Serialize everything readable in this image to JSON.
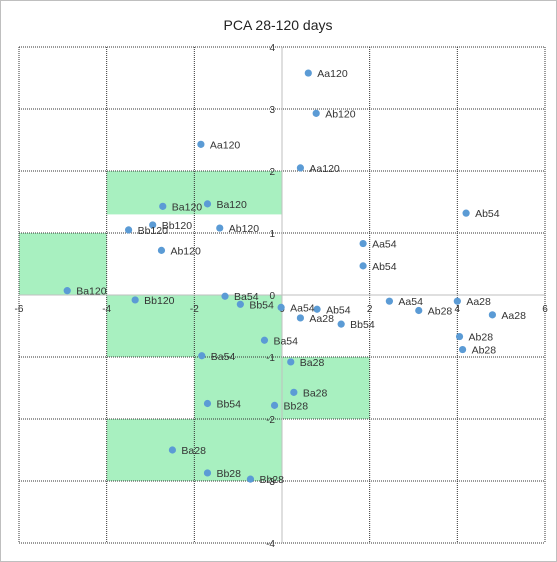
{
  "chart_data": {
    "type": "scatter",
    "title": "PCA 28-120 days",
    "xlabel": "",
    "ylabel": "",
    "xlim": [
      -6,
      6
    ],
    "ylim": [
      -4,
      4
    ],
    "x_ticks": [
      -6,
      -4,
      -2,
      0,
      2,
      4,
      6
    ],
    "y_ticks": [
      -4,
      -3,
      -2,
      -1,
      0,
      1,
      2,
      3,
      4
    ],
    "x_tick_labels": [
      "-6",
      "-4",
      "-2",
      "0",
      "2",
      "4",
      "6"
    ],
    "y_tick_labels": [
      "-4",
      "-3",
      "-2",
      "-1",
      "0",
      "1",
      "2",
      "3",
      "4"
    ],
    "grid": true,
    "legend": "none",
    "colors": {
      "marker": "#5b9bd5",
      "highlight": "#a8f0c0",
      "grid": "#333333",
      "axis": "#bfbfbf",
      "border": "#bfbfbf"
    },
    "highlight_regions": [
      {
        "x": [
          -4,
          0
        ],
        "y": [
          1.3,
          2
        ]
      },
      {
        "x": [
          -6,
          -4
        ],
        "y": [
          0,
          1
        ]
      },
      {
        "x": [
          -4,
          -2
        ],
        "y": [
          -1,
          0
        ]
      },
      {
        "x": [
          -2,
          0
        ],
        "y": [
          -2,
          0
        ]
      },
      {
        "x": [
          0,
          2
        ],
        "y": [
          -2,
          -1
        ]
      },
      {
        "x": [
          -4,
          0
        ],
        "y": [
          -3,
          -2
        ]
      }
    ],
    "points": [
      {
        "label": "Aa120",
        "x": 0.6,
        "y": 3.58
      },
      {
        "label": "Ab120",
        "x": 0.78,
        "y": 2.93
      },
      {
        "label": "Aa120",
        "x": -1.85,
        "y": 2.43
      },
      {
        "label": "Aa120",
        "x": 0.42,
        "y": 2.05
      },
      {
        "label": "Ba120",
        "x": -2.72,
        "y": 1.43
      },
      {
        "label": "Ba120",
        "x": -1.7,
        "y": 1.47
      },
      {
        "label": "Bb120",
        "x": -2.95,
        "y": 1.13
      },
      {
        "label": "Bb120",
        "x": -3.5,
        "y": 1.05
      },
      {
        "label": "Ab120",
        "x": -1.42,
        "y": 1.08
      },
      {
        "label": "Ab120",
        "x": -2.75,
        "y": 0.72
      },
      {
        "label": "Ba120",
        "x": -4.9,
        "y": 0.07
      },
      {
        "label": "Bb120",
        "x": -3.35,
        "y": -0.08
      },
      {
        "label": "Ab54",
        "x": 4.2,
        "y": 1.32
      },
      {
        "label": "Aa54",
        "x": 1.85,
        "y": 0.83
      },
      {
        "label": "Ab54",
        "x": 1.85,
        "y": 0.47
      },
      {
        "label": "Ba54",
        "x": -1.3,
        "y": -0.02
      },
      {
        "label": "Bb54",
        "x": -0.95,
        "y": -0.15
      },
      {
        "label": "Aa54",
        "x": -0.02,
        "y": -0.2
      },
      {
        "label": "Ab54",
        "x": 0.8,
        "y": -0.23
      },
      {
        "label": "Aa28",
        "x": 0.42,
        "y": -0.37
      },
      {
        "label": "Bb54",
        "x": 1.35,
        "y": -0.47
      },
      {
        "label": "Aa54",
        "x": 2.45,
        "y": -0.1
      },
      {
        "label": "Ab28",
        "x": 3.12,
        "y": -0.25
      },
      {
        "label": "Aa28",
        "x": 4.0,
        "y": -0.1
      },
      {
        "label": "Aa28",
        "x": 4.8,
        "y": -0.32
      },
      {
        "label": "Ab28",
        "x": 4.05,
        "y": -0.67
      },
      {
        "label": "Ab28",
        "x": 4.12,
        "y": -0.88
      },
      {
        "label": "Ba54",
        "x": -0.4,
        "y": -0.73
      },
      {
        "label": "Ba54",
        "x": -1.83,
        "y": -0.98
      },
      {
        "label": "Ba28",
        "x": 0.2,
        "y": -1.08
      },
      {
        "label": "Ba28",
        "x": 0.27,
        "y": -1.57
      },
      {
        "label": "Bb28",
        "x": -0.17,
        "y": -1.78
      },
      {
        "label": "Bb54",
        "x": -1.7,
        "y": -1.75
      },
      {
        "label": "Ba28",
        "x": -2.5,
        "y": -2.5
      },
      {
        "label": "Bb28",
        "x": -1.7,
        "y": -2.87
      },
      {
        "label": "Bb28",
        "x": -0.72,
        "y": -2.97
      }
    ]
  }
}
